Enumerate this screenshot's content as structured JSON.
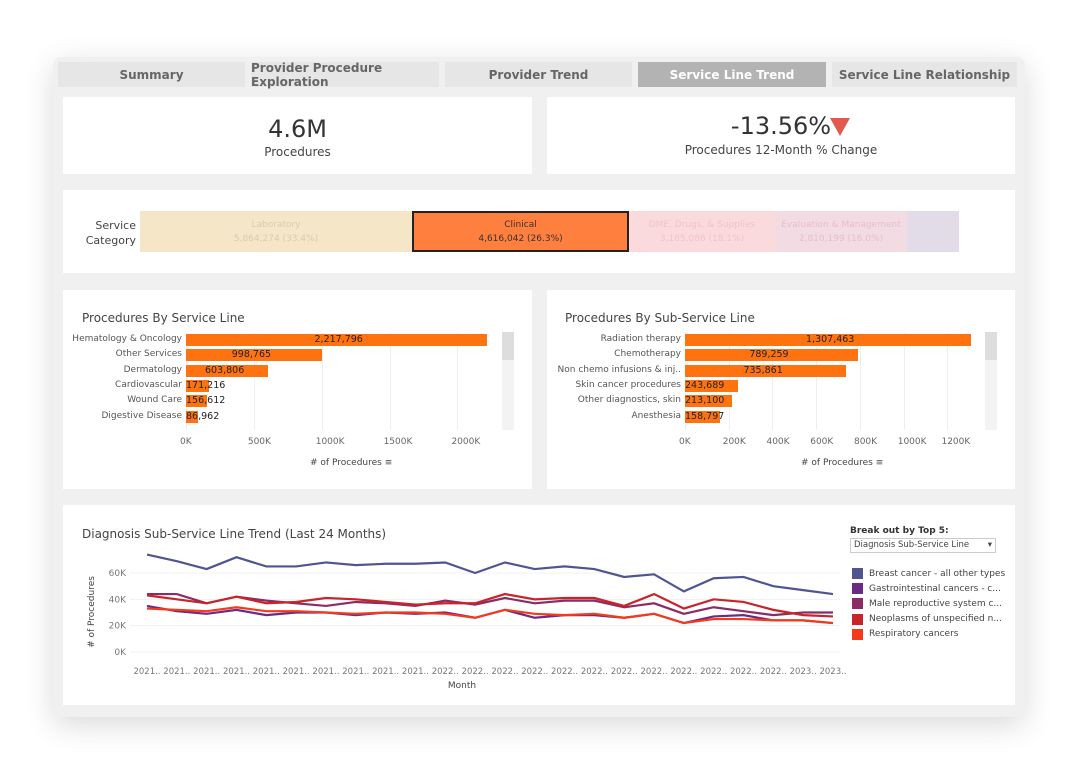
{
  "tabs": [
    {
      "label": "Summary",
      "active": false
    },
    {
      "label": "Provider Procedure Exploration",
      "active": false
    },
    {
      "label": "Provider Trend",
      "active": false
    },
    {
      "label": "Service Line Trend",
      "active": true
    },
    {
      "label": "Service Line Relationship",
      "active": false
    }
  ],
  "kpis": {
    "procedures": {
      "value": "4.6M",
      "label": "Procedures"
    },
    "change": {
      "value": "-13.56%",
      "label": "Procedures 12-Month % Change",
      "indicator": "down-triangle-icon",
      "indicator_color": "#e05a4f"
    }
  },
  "service_category": {
    "label_line1": "Service",
    "label_line2": "Category",
    "segments": [
      {
        "name": "Laboratory",
        "value": "5,864,274 (33.4%)",
        "color": "#f5e6c8",
        "selected": false
      },
      {
        "name": "Clinical",
        "value": "4,616,042 (26.3%)",
        "color": "#ff7f3f",
        "selected": true
      },
      {
        "name": "DME, Drugs, & Supplies",
        "value": "3,185,086 (18.1%)",
        "color": "#fadadd",
        "selected": false
      },
      {
        "name": "Evaluation & Management",
        "value": "2,810,199 (16.0%)",
        "color": "#f3dbe3",
        "selected": false
      },
      {
        "name": "",
        "value": "",
        "color": "#e2dbe8",
        "selected": false
      }
    ]
  },
  "chart_data": [
    {
      "type": "bar",
      "title": "Procedures By Service Line",
      "xlabel": "# of Procedures",
      "xlim": [
        0,
        2400000
      ],
      "ticks": [
        "0K",
        "500K",
        "1000K",
        "1500K",
        "2000K"
      ],
      "categories": [
        "Hematology & Oncology",
        "Other Services",
        "Dermatology",
        "Cardiovascular",
        "Wound Care",
        "Digestive Disease"
      ],
      "values": [
        2217796,
        998765,
        603806,
        171216,
        156612,
        86962
      ],
      "labels": [
        "2,217,796",
        "998,765",
        "603,806",
        "171,216",
        "156,612",
        "86,962"
      ],
      "color": "#ff7210"
    },
    {
      "type": "bar",
      "title": "Procedures By Sub-Service Line",
      "xlabel": "# of Procedures",
      "xlim": [
        0,
        1400000
      ],
      "ticks": [
        "0K",
        "200K",
        "400K",
        "600K",
        "800K",
        "1000K",
        "1200K"
      ],
      "categories": [
        "Radiation therapy",
        "Chemotherapy",
        "Non chemo infusions & inj..",
        "Skin cancer procedures",
        "Other diagnostics, skin",
        "Anesthesia"
      ],
      "values": [
        1307463,
        789259,
        735861,
        243689,
        213100,
        158797
      ],
      "labels": [
        "1,307,463",
        "789,259",
        "735,861",
        "243,689",
        "213,100",
        "158,797"
      ],
      "color": "#ff7210"
    },
    {
      "type": "line",
      "title": "Diagnosis Sub-Service Line Trend (Last 24 Months)",
      "xlabel": "Month",
      "ylabel": "# of Procedures",
      "ylim": [
        0,
        75000
      ],
      "yticks": [
        "0K",
        "20K",
        "40K",
        "60K"
      ],
      "x": [
        "2021..",
        "2021..",
        "2021..",
        "2021..",
        "2021..",
        "2021..",
        "2021..",
        "2021..",
        "2021..",
        "2021..",
        "2022..",
        "2022..",
        "2022..",
        "2022..",
        "2022..",
        "2022..",
        "2022..",
        "2022..",
        "2022..",
        "2022..",
        "2022..",
        "2022..",
        "2023..",
        "2023.."
      ],
      "series": [
        {
          "name": "Breast cancer - all other types",
          "color": "#4f5592",
          "values": [
            74000,
            69000,
            63000,
            72000,
            65000,
            65000,
            68000,
            66000,
            67000,
            67000,
            68000,
            60000,
            68000,
            63000,
            65000,
            63000,
            57000,
            59000,
            46000,
            56000,
            57000,
            50000,
            47000,
            44000
          ]
        },
        {
          "name": "Gastrointestinal cancers - c...",
          "color": "#6b2a86",
          "values": [
            35000,
            31000,
            29000,
            32000,
            28000,
            30000,
            30000,
            28000,
            30000,
            29000,
            30000,
            26000,
            32000,
            26000,
            28000,
            28000,
            26000,
            29000,
            22000,
            27000,
            28000,
            24000,
            24000,
            22000
          ]
        },
        {
          "name": "Male reproductive system c...",
          "color": "#8b2c62",
          "values": [
            44000,
            44000,
            37000,
            42000,
            39000,
            37000,
            35000,
            38000,
            37000,
            35000,
            39000,
            36000,
            41000,
            37000,
            39000,
            39000,
            34000,
            37000,
            29000,
            34000,
            31000,
            28000,
            30000,
            30000
          ]
        },
        {
          "name": "Neoplasms of unspecified n...",
          "color": "#c8242a",
          "values": [
            43000,
            40000,
            37000,
            42000,
            37000,
            38000,
            41000,
            40000,
            38000,
            36000,
            37000,
            37000,
            44000,
            40000,
            41000,
            41000,
            35000,
            44000,
            33000,
            40000,
            38000,
            32000,
            28000,
            27000
          ]
        },
        {
          "name": "Respiratory cancers",
          "color": "#f53a1a",
          "values": [
            33000,
            32000,
            31000,
            34000,
            31000,
            31000,
            30000,
            29000,
            30000,
            30000,
            29000,
            26000,
            32000,
            29000,
            28000,
            29000,
            26000,
            29000,
            22000,
            25000,
            25000,
            24000,
            24000,
            22000
          ]
        }
      ]
    }
  ],
  "breakout": {
    "label": "Break out by Top 5:",
    "selected": "Diagnosis Sub-Service Line"
  }
}
